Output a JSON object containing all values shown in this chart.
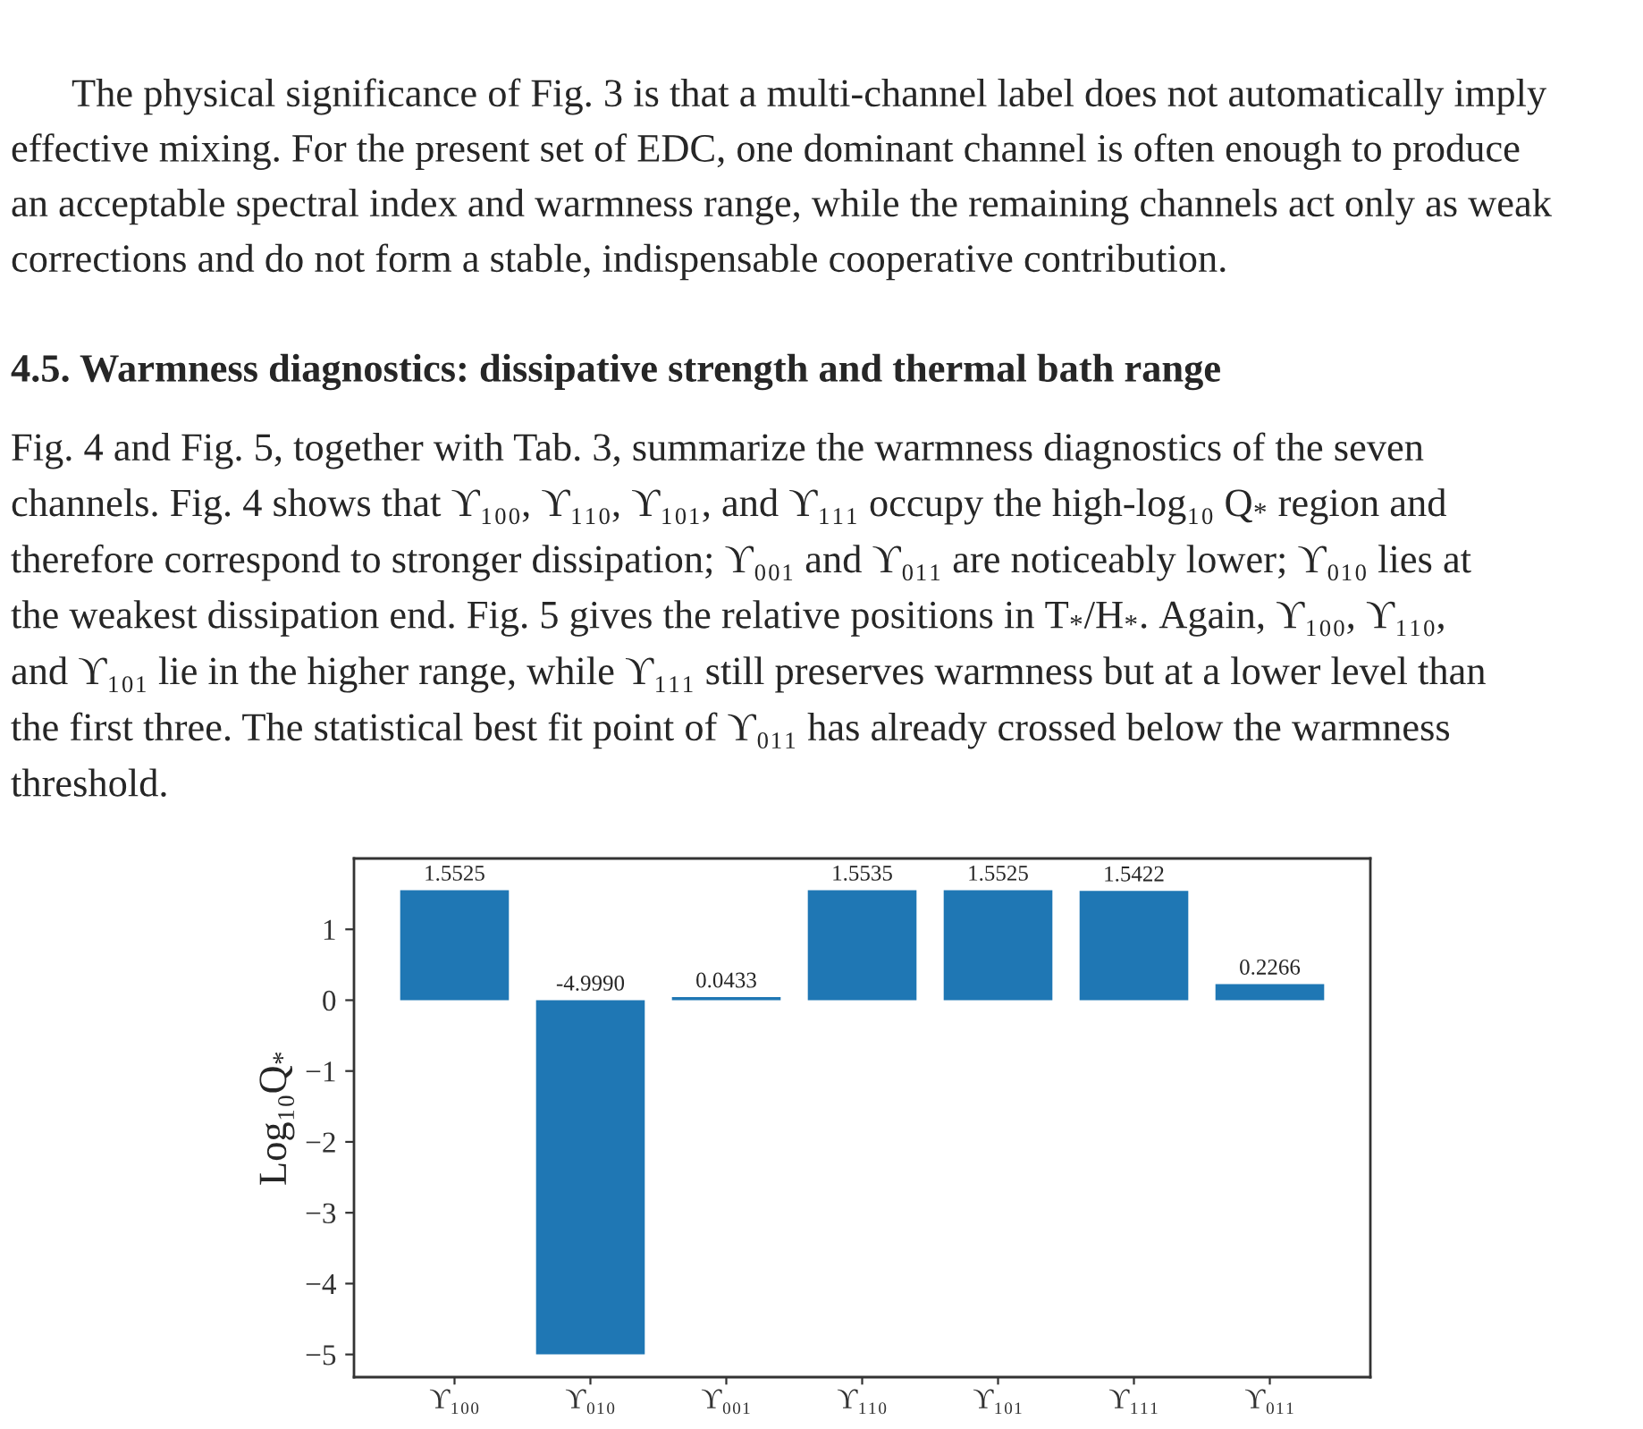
{
  "chart_data": {
    "type": "bar",
    "title": "4.5. Warmness diagnostics: dissipative strength and thermal bath range",
    "ylabel": "Log₁₀Q$_{*}$",
    "categories": [
      "ϒ₁₀₀",
      "ϒ₀₁₀",
      "ϒ₀₀₁",
      "ϒ₁₁₀",
      "ϒ₁₀₁",
      "ϒ₁₁₁",
      "ϒ₀₁₁"
    ],
    "values": [
      1.5525,
      -4.999,
      0.0433,
      1.5535,
      1.5525,
      1.5422,
      0.2266
    ],
    "value_labels": [
      "1.5525",
      "-4.9990",
      "0.0433",
      "1.5535",
      "1.5525",
      "1.5422",
      "0.2266"
    ],
    "color": "#1f77b4",
    "ylim": [
      -5.32,
      2.0
    ],
    "yticks": [
      {
        "value": -5,
        "label": "−5"
      },
      {
        "value": -4,
        "label": "−4"
      },
      {
        "value": -3,
        "label": "−3"
      },
      {
        "value": -2,
        "label": "−2"
      },
      {
        "value": -1,
        "label": "−1"
      },
      0,
      1
    ],
    "annotations": [
      "The physical significance of Fig. 3 is that a multi-channel label does not automatically imply",
      "effective mixing. For the present set of EDC, one dominant channel is often enough to produce",
      "an acceptable spectral index and warmness range, while the remaining channels act only as weak",
      "corrections and do not form a stable, indispensable cooperative contribution.",
      "Fig. 4 and Fig. 5, together with Tab. 3, summarize the warmness diagnostics of the seven",
      "channels. Fig. 4 shows that ϒ₁₀₀, ϒ₁₁₀, ϒ₁₀₁, and ϒ₁₁₁ occupy the high-log₁₀ Q$_{*}$ region and",
      "therefore correspond to stronger dissipation; ϒ₀₀₁ and ϒ₀₁₁ are noticeably lower; ϒ₀₁₀ lies at",
      "the weakest dissipation end. Fig. 5 gives the relative positions in T$_{*}$/H$_{*}$. Again, ϒ₁₀₀, ϒ₁₁₀,",
      "and ϒ₁₀₁ lie in the higher range, while ϒ₁₁₁ still preserves warmness but at a lower level than",
      "the first three. The statistical best fit point of ϒ₀₁₁ has already crossed below the warmness",
      "threshold."
    ]
  }
}
